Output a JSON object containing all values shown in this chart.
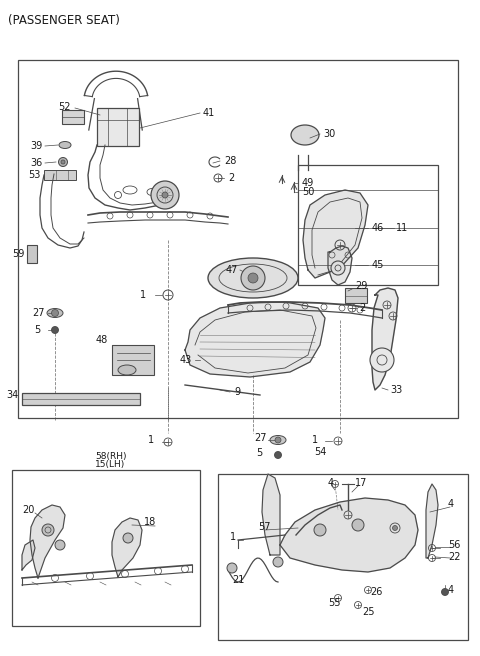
{
  "title": "(PASSENGER SEAT)",
  "bg_color": "#ffffff",
  "line_color": "#4a4a4a",
  "text_color": "#1a1a1a",
  "title_fontsize": 8.5,
  "label_fontsize": 7.0
}
